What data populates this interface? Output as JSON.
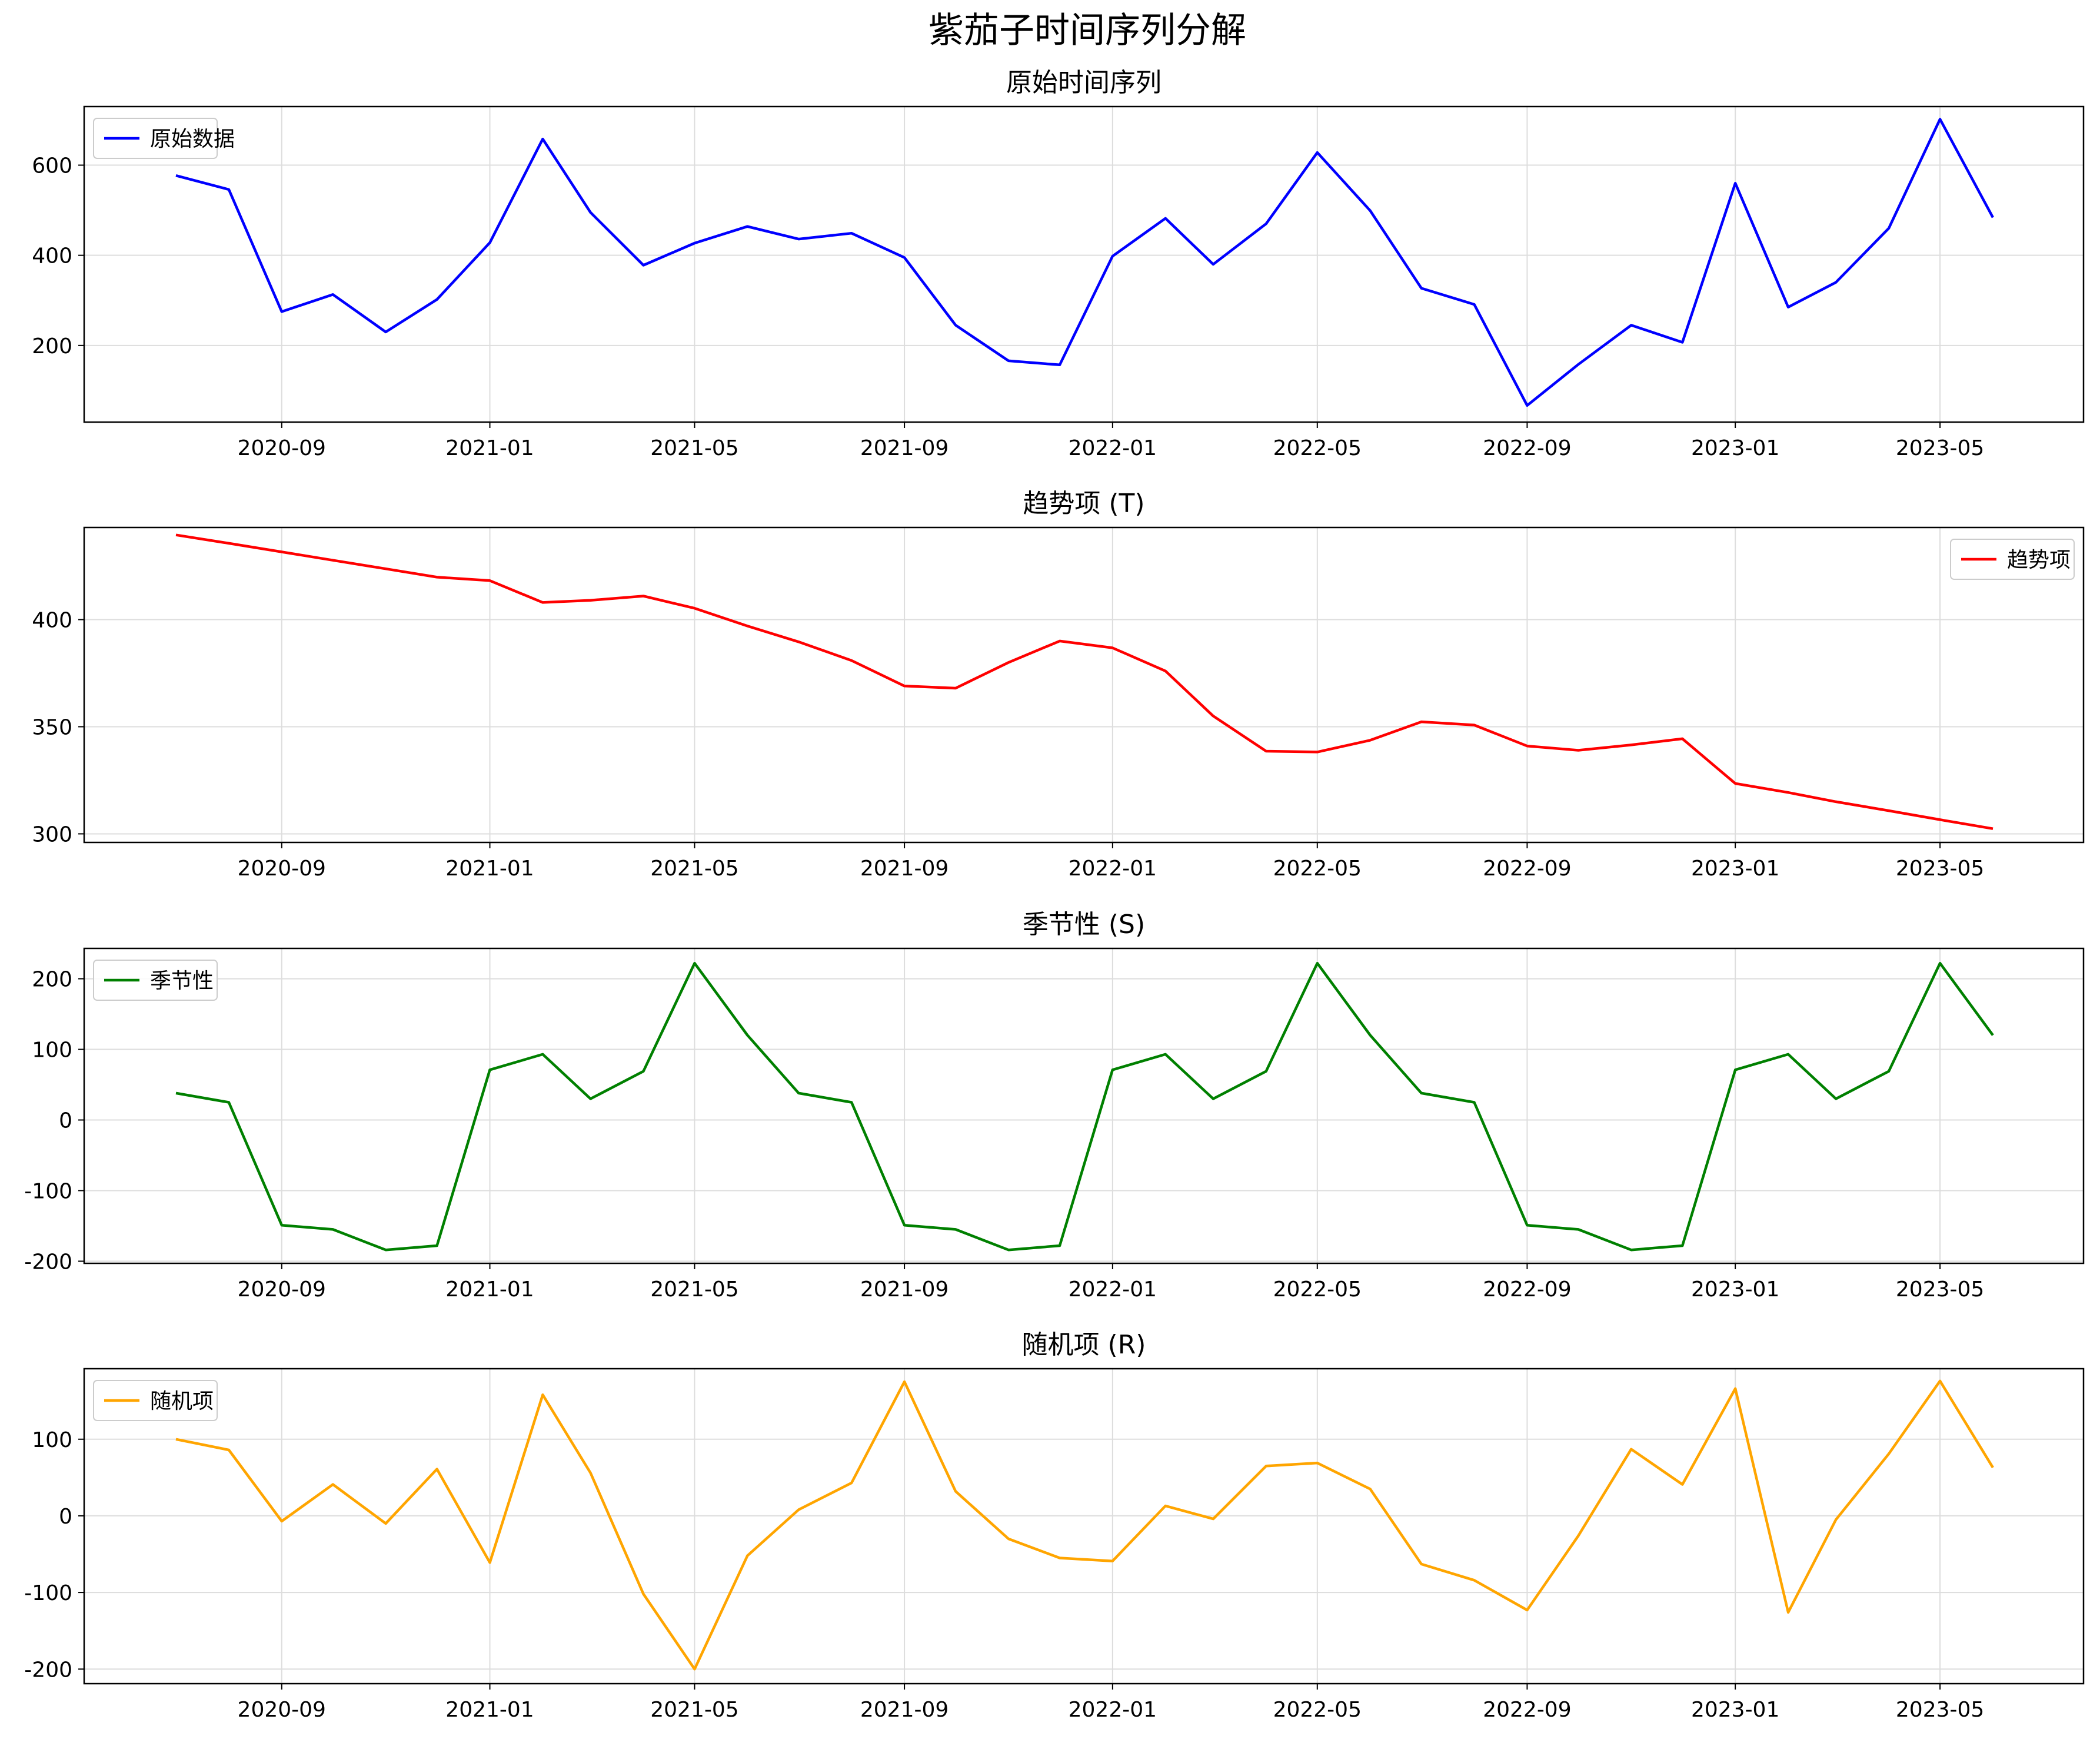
{
  "title": "紫茄子时间序列分解",
  "chart_data": [
    {
      "type": "line",
      "title": "原始时间序列",
      "x_tick_labels": [
        "2020-09",
        "2021-01",
        "2021-05",
        "2021-09",
        "2022-01",
        "2022-05",
        "2022-09",
        "2023-01",
        "2023-05"
      ],
      "y_ticks": [
        200,
        400,
        600
      ],
      "ylim": [
        30,
        730
      ],
      "grid": true,
      "legend_position": "top-left",
      "color": "#0000ff",
      "series": [
        {
          "name": "原始数据",
          "x": [
            "2020-07",
            "2020-08",
            "2020-09",
            "2020-10",
            "2020-11",
            "2020-12",
            "2021-01",
            "2021-02",
            "2021-03",
            "2021-04",
            "2021-05",
            "2021-06",
            "2021-07",
            "2021-08",
            "2021-09",
            "2021-10",
            "2021-11",
            "2021-12",
            "2022-01",
            "2022-02",
            "2022-03",
            "2022-04",
            "2022-05",
            "2022-06",
            "2022-07",
            "2022-08",
            "2022-09",
            "2022-10",
            "2022-11",
            "2022-12",
            "2023-01",
            "2023-02",
            "2023-03",
            "2023-04",
            "2023-05",
            "2023-06"
          ],
          "values": [
            577,
            546,
            275,
            313,
            230,
            302,
            428,
            658,
            495,
            378,
            427,
            464,
            436,
            449,
            395,
            245,
            166,
            157,
            398,
            482,
            380,
            470,
            628,
            499,
            327,
            291,
            67,
            158,
            245,
            207,
            560,
            285,
            340,
            460,
            702,
            484
          ]
        }
      ]
    },
    {
      "type": "line",
      "title": "趋势项 (T)",
      "x_tick_labels": [
        "2020-09",
        "2021-01",
        "2021-05",
        "2021-09",
        "2022-01",
        "2022-05",
        "2022-09",
        "2023-01",
        "2023-05"
      ],
      "y_ticks": [
        300,
        350,
        400
      ],
      "ylim": [
        296,
        443
      ],
      "grid": true,
      "legend_position": "top-right",
      "color": "#ff0000",
      "series": [
        {
          "name": "趋势项",
          "x": [
            "2020-07",
            "2020-08",
            "2020-09",
            "2020-10",
            "2020-11",
            "2020-12",
            "2021-01",
            "2021-02",
            "2021-03",
            "2021-04",
            "2021-05",
            "2021-06",
            "2021-07",
            "2021-08",
            "2021-09",
            "2021-10",
            "2021-11",
            "2021-12",
            "2022-01",
            "2022-02",
            "2022-03",
            "2022-04",
            "2022-05",
            "2022-06",
            "2022-07",
            "2022-08",
            "2022-09",
            "2022-10",
            "2022-11",
            "2022-12",
            "2023-01",
            "2023-02",
            "2023-03",
            "2023-04",
            "2023-05",
            "2023-06"
          ],
          "values": [
            439.5,
            435.6,
            431.6,
            427.7,
            423.7,
            419.8,
            418.2,
            408.0,
            409.0,
            411.0,
            405.3,
            397.0,
            389.6,
            380.9,
            369.0,
            368.0,
            380.0,
            390.0,
            386.8,
            376.0,
            355.0,
            338.6,
            338.2,
            343.7,
            352.3,
            350.8,
            341.0,
            339.0,
            341.5,
            344.4,
            323.5,
            319.3,
            315.0,
            310.8,
            306.6,
            302.4
          ]
        }
      ]
    },
    {
      "type": "line",
      "title": "季节性 (S)",
      "x_tick_labels": [
        "2020-09",
        "2021-01",
        "2021-05",
        "2021-09",
        "2022-01",
        "2022-05",
        "2022-09",
        "2023-01",
        "2023-05"
      ],
      "y_ticks": [
        -200,
        -100,
        0,
        100,
        200
      ],
      "ylim": [
        -203,
        243
      ],
      "grid": true,
      "legend_position": "top-left",
      "color": "#008000",
      "series": [
        {
          "name": "季节性",
          "x": [
            "2020-07",
            "2020-08",
            "2020-09",
            "2020-10",
            "2020-11",
            "2020-12",
            "2021-01",
            "2021-02",
            "2021-03",
            "2021-04",
            "2021-05",
            "2021-06",
            "2021-07",
            "2021-08",
            "2021-09",
            "2021-10",
            "2021-11",
            "2021-12",
            "2022-01",
            "2022-02",
            "2022-03",
            "2022-04",
            "2022-05",
            "2022-06",
            "2022-07",
            "2022-08",
            "2022-09",
            "2022-10",
            "2022-11",
            "2022-12",
            "2023-01",
            "2023-02",
            "2023-03",
            "2023-04",
            "2023-05",
            "2023-06"
          ],
          "values": [
            38,
            25,
            -149,
            -155,
            -184,
            -178,
            71,
            93,
            30,
            69,
            222,
            120,
            38,
            25,
            -149,
            -155,
            -184,
            -178,
            71,
            93,
            30,
            69,
            222,
            120,
            38,
            25,
            -149,
            -155,
            -184,
            -178,
            71,
            93,
            30,
            69,
            222,
            120
          ]
        }
      ]
    },
    {
      "type": "line",
      "title": "随机项 (R)",
      "x_tick_labels": [
        "2020-09",
        "2021-01",
        "2021-05",
        "2021-09",
        "2022-01",
        "2022-05",
        "2022-09",
        "2023-01",
        "2023-05"
      ],
      "y_ticks": [
        -200,
        -100,
        0,
        100
      ],
      "ylim": [
        -219,
        192
      ],
      "grid": true,
      "legend_position": "top-left",
      "color": "#ffa500",
      "series": [
        {
          "name": "随机项",
          "x": [
            "2020-07",
            "2020-08",
            "2020-09",
            "2020-10",
            "2020-11",
            "2020-12",
            "2021-01",
            "2021-02",
            "2021-03",
            "2021-04",
            "2021-05",
            "2021-06",
            "2021-07",
            "2021-08",
            "2021-09",
            "2021-10",
            "2021-11",
            "2021-12",
            "2022-01",
            "2022-02",
            "2022-03",
            "2022-04",
            "2022-05",
            "2022-06",
            "2022-07",
            "2022-08",
            "2022-09",
            "2022-10",
            "2022-11",
            "2022-12",
            "2023-01",
            "2023-02",
            "2023-03",
            "2023-04",
            "2023-05",
            "2023-06"
          ],
          "values": [
            100,
            86,
            -7,
            41,
            -10,
            61,
            -61,
            158,
            56,
            -102,
            -200,
            -52,
            8,
            43,
            175,
            32,
            -30,
            -55,
            -59,
            13,
            -4,
            65,
            69,
            35,
            -63,
            -84,
            -123,
            -26,
            87,
            41,
            166,
            -126,
            -5,
            81,
            176,
            63
          ]
        }
      ]
    }
  ]
}
